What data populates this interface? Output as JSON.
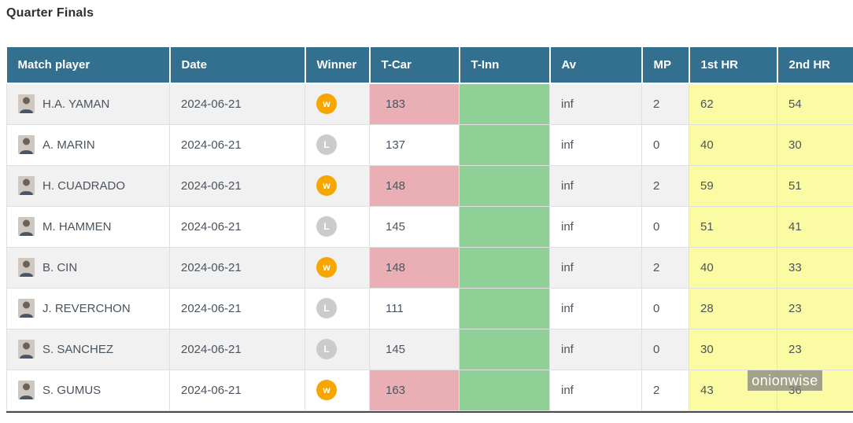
{
  "page_title": "Quarter Finals",
  "watermark": "onionwise",
  "colors": {
    "header_bg": "#336f8f",
    "row_alt_bg": "#f1f1f1",
    "t_car_win_bg": "#e9afb4",
    "t_inn_bg": "#8fd096",
    "hr_bg": "#fbfba3",
    "winner_badge": "#f7a600",
    "loser_badge": "#cbcbcb"
  },
  "table": {
    "headers": [
      "Match player",
      "Date",
      "Winner",
      "T-Car",
      "T-Inn",
      "Av",
      "MP",
      "1st HR",
      "2nd HR"
    ],
    "rows": [
      {
        "player": "H.A. YAMAN",
        "date": "2024-06-21",
        "winner": "W",
        "t_car": "183",
        "t_inn": "",
        "av": "inf",
        "mp": "2",
        "hr1": "62",
        "hr2": "54"
      },
      {
        "player": "A. MARIN",
        "date": "2024-06-21",
        "winner": "L",
        "t_car": "137",
        "t_inn": "",
        "av": "inf",
        "mp": "0",
        "hr1": "40",
        "hr2": "30"
      },
      {
        "player": "H. CUADRADO",
        "date": "2024-06-21",
        "winner": "W",
        "t_car": "148",
        "t_inn": "",
        "av": "inf",
        "mp": "2",
        "hr1": "59",
        "hr2": "51"
      },
      {
        "player": "M. HAMMEN",
        "date": "2024-06-21",
        "winner": "L",
        "t_car": "145",
        "t_inn": "",
        "av": "inf",
        "mp": "0",
        "hr1": "51",
        "hr2": "41"
      },
      {
        "player": "B. CIN",
        "date": "2024-06-21",
        "winner": "W",
        "t_car": "148",
        "t_inn": "",
        "av": "inf",
        "mp": "2",
        "hr1": "40",
        "hr2": "33"
      },
      {
        "player": "J. REVERCHON",
        "date": "2024-06-21",
        "winner": "L",
        "t_car": "111",
        "t_inn": "",
        "av": "inf",
        "mp": "0",
        "hr1": "28",
        "hr2": "23"
      },
      {
        "player": "S. SANCHEZ",
        "date": "2024-06-21",
        "winner": "L",
        "t_car": "145",
        "t_inn": "",
        "av": "inf",
        "mp": "0",
        "hr1": "30",
        "hr2": "23"
      },
      {
        "player": "S. GUMUS",
        "date": "2024-06-21",
        "winner": "W",
        "t_car": "163",
        "t_inn": "",
        "av": "inf",
        "mp": "2",
        "hr1": "43",
        "hr2": "36"
      }
    ]
  }
}
